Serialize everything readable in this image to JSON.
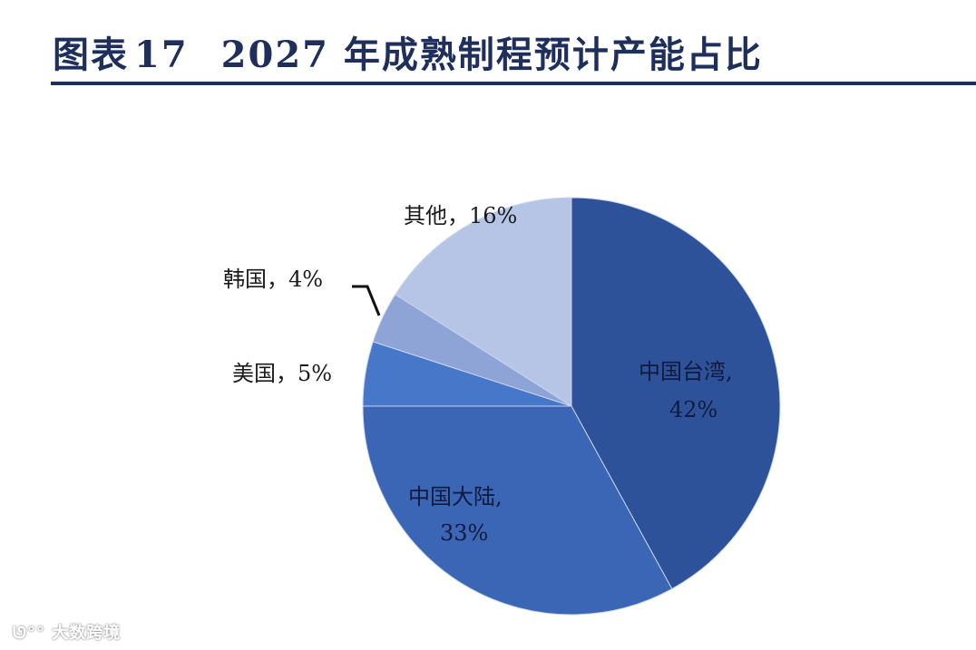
{
  "header": {
    "figure_label": "图表",
    "figure_number": "17",
    "title_text": "2027 年成熟制程预计产能占比"
  },
  "chart_data": {
    "type": "pie",
    "title": "图表 17 2027 年成熟制程预计产能占比",
    "start_angle": "12 o'clock, clockwise",
    "categories": [
      "中国台湾",
      "中国大陆",
      "美国",
      "韩国",
      "其他"
    ],
    "values": [
      42,
      33,
      5,
      4,
      16
    ],
    "unit": "%",
    "colors": [
      "#2e5299",
      "#3a66b5",
      "#4777c9",
      "#8ea3d6",
      "#b6c5e6"
    ],
    "labels": [
      {
        "name": "中国台湾",
        "pct": "42%",
        "line1": "中国台湾,",
        "line2": "42%"
      },
      {
        "name": "中国大陆",
        "pct": "33%",
        "line1": "中国大陆,",
        "line2": "33%"
      },
      {
        "name": "美国",
        "pct": "5%",
        "text": "美国，5%"
      },
      {
        "name": "韩国",
        "pct": "4%",
        "text": "韩国，4%"
      },
      {
        "name": "其他",
        "pct": "16%",
        "text": "其他，16%"
      }
    ]
  },
  "watermark": {
    "text": "大数跨境"
  }
}
